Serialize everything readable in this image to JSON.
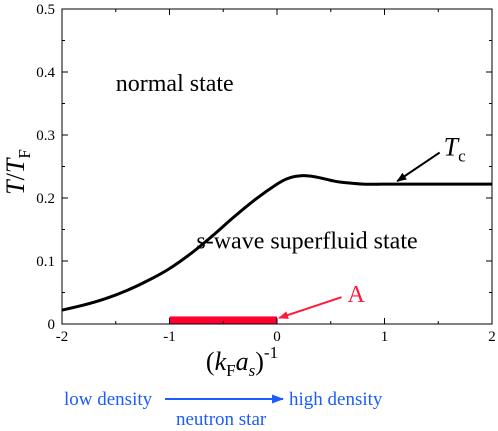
{
  "chart_data": {
    "type": "line",
    "xlim": [
      -2,
      2
    ],
    "ylim": [
      0,
      0.5
    ],
    "xticks": [
      -2,
      -1,
      0,
      1,
      2
    ],
    "yticks": [
      0,
      0.1,
      0.2,
      0.3,
      0.4,
      0.5
    ],
    "xtick_labels": [
      "-2",
      "-1",
      "0",
      "1",
      "2"
    ],
    "ytick_labels": [
      "0",
      "0.1",
      "0.2",
      "0.3",
      "0.4",
      "0.5"
    ],
    "xlabel": {
      "open": "(",
      "k": "k",
      "sub": "F",
      "a": "a",
      "s": "s",
      "close": ")",
      "sup": "-1"
    },
    "ylabel": {
      "T": "T",
      "slash": "/",
      "T2": "T",
      "sub": "F"
    },
    "grid": false,
    "series": [
      {
        "name": "Tc",
        "color": "#000000",
        "x": [
          -2.0,
          -1.8,
          -1.6,
          -1.4,
          -1.2,
          -1.0,
          -0.8,
          -0.6,
          -0.4,
          -0.2,
          0.0,
          0.1,
          0.2,
          0.3,
          0.4,
          0.5,
          0.6,
          0.8,
          1.0,
          1.2,
          1.4,
          1.6,
          1.8,
          2.0
        ],
        "y": [
          0.022,
          0.03,
          0.04,
          0.053,
          0.069,
          0.088,
          0.112,
          0.14,
          0.17,
          0.198,
          0.222,
          0.231,
          0.235,
          0.235,
          0.232,
          0.228,
          0.225,
          0.222,
          0.222,
          0.222,
          0.222,
          0.222,
          0.222,
          0.222
        ]
      }
    ],
    "region": {
      "label": "A",
      "x": [
        -1,
        0
      ],
      "y": [
        0,
        0.012
      ],
      "color": "#ff0033"
    },
    "annotations": {
      "tc": {
        "T": "T",
        "sub": "c",
        "point": [
          1.1,
          0.222
        ],
        "label_at": [
          1.55,
          0.28
        ]
      },
      "normal": {
        "text": "normal state",
        "at": [
          -1.5,
          0.37
        ]
      },
      "superfluid": {
        "text": "s-wave superfluid state",
        "at": [
          -0.75,
          0.12
        ]
      },
      "a_arrow": {
        "point": [
          0.02,
          0.008
        ],
        "label_at": [
          0.6,
          0.033
        ]
      }
    }
  },
  "density_axis": {
    "low": "low density",
    "high": "high density",
    "middle": "neutron star",
    "color": "#1c5cff"
  }
}
